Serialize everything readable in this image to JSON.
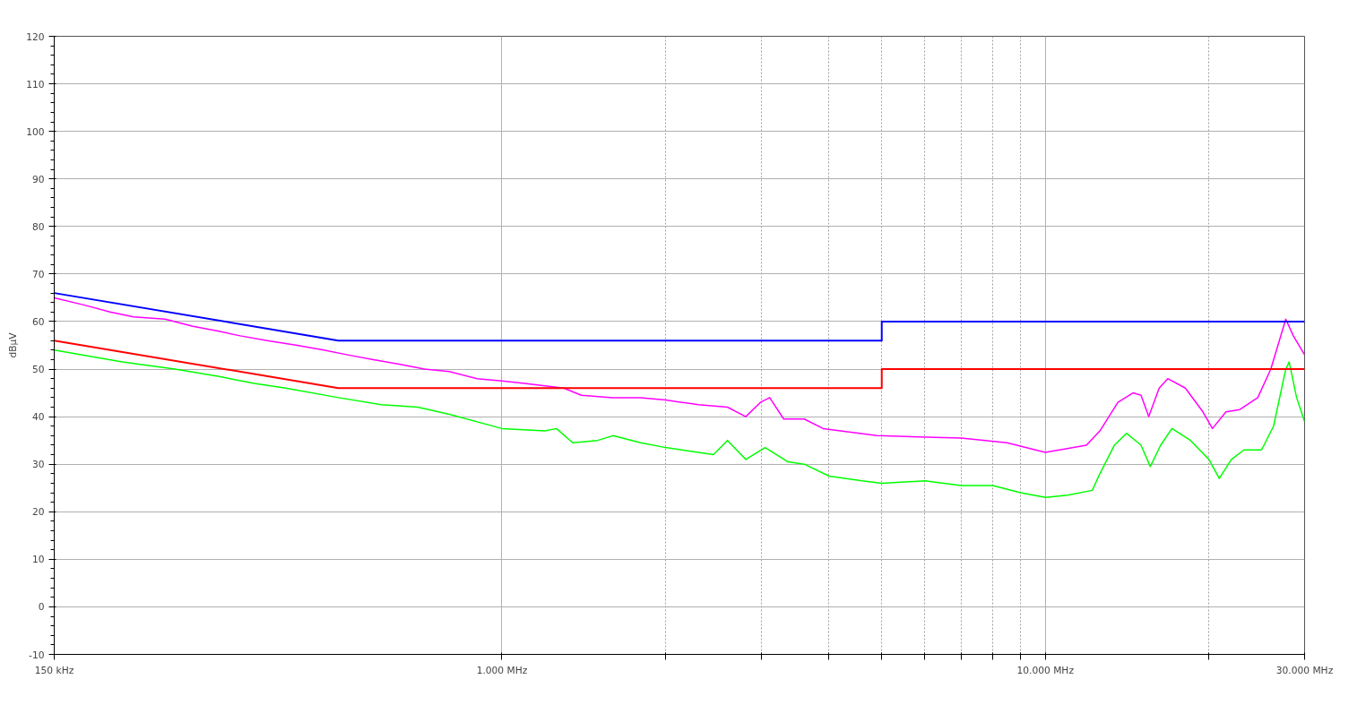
{
  "chart_data": {
    "type": "line",
    "ylabel": "dBµV",
    "log": "x",
    "grid": true,
    "marker": "none",
    "line_style": "solid",
    "xlim": [
      150,
      30000
    ],
    "ylim": [
      -10,
      120
    ],
    "xticks": [
      {
        "value": 150,
        "label": "150 kHz"
      },
      {
        "value": 1000,
        "label": "1.000 MHz"
      },
      {
        "value": 2000,
        "label": null
      },
      {
        "value": 3000,
        "label": null
      },
      {
        "value": 4000,
        "label": null
      },
      {
        "value": 5000,
        "label": null
      },
      {
        "value": 6000,
        "label": null
      },
      {
        "value": 7000,
        "label": null
      },
      {
        "value": 8000,
        "label": null
      },
      {
        "value": 9000,
        "label": null
      },
      {
        "value": 10000,
        "label": "10.000 MHz"
      },
      {
        "value": 20000,
        "label": null
      },
      {
        "value": 30000,
        "label": "30.000 MHz"
      }
    ],
    "yticks": [
      -10,
      0,
      10,
      20,
      30,
      40,
      50,
      60,
      70,
      80,
      90,
      100,
      110,
      120
    ],
    "series": [
      {
        "color": "#ff00ff",
        "x": [
          150,
          170,
          190,
          210,
          240,
          270,
          300,
          330,
          370,
          420,
          470,
          520,
          580,
          650,
          720,
          800,
          900,
          1000,
          1100,
          1300,
          1400,
          1600,
          1800,
          2000,
          2300,
          2600,
          2810,
          2990,
          3110,
          3300,
          3600,
          3900,
          4900,
          7000,
          8500,
          10000,
          11900,
          12600,
          13600,
          14500,
          15000,
          15500,
          16200,
          16800,
          18100,
          19500,
          20300,
          21500,
          22800,
          24600,
          26000,
          27700,
          28600,
          30000
        ],
        "values": [
          65,
          63.5,
          62,
          61,
          60.5,
          59,
          58,
          57,
          56,
          55,
          54,
          53,
          52,
          51,
          50,
          49.5,
          48,
          47.5,
          47,
          46,
          44.5,
          44,
          44,
          43.5,
          42.5,
          42,
          40,
          43,
          44,
          39.5,
          39.5,
          37.5,
          36,
          35.5,
          34.5,
          32.5,
          34,
          37,
          43,
          45,
          44.5,
          40,
          46,
          48,
          46,
          41,
          37.5,
          41,
          41.5,
          44,
          50,
          60.5,
          57,
          53
        ]
      },
      {
        "color": "#00ff00",
        "x": [
          150,
          200,
          250,
          300,
          350,
          400,
          500,
          600,
          700,
          800,
          1000,
          1200,
          1260,
          1350,
          1500,
          1600,
          1800,
          2000,
          2300,
          2450,
          2600,
          2810,
          3050,
          3360,
          3600,
          4000,
          4600,
          5000,
          6000,
          7000,
          8000,
          9000,
          10000,
          11000,
          12200,
          12600,
          13400,
          14100,
          15000,
          15600,
          16300,
          17100,
          18500,
          20000,
          20900,
          22000,
          23200,
          25000,
          26300,
          27700,
          28100,
          29000,
          30000
        ],
        "values": [
          54,
          51.5,
          50,
          48.5,
          47,
          46,
          44,
          42.5,
          42,
          40.5,
          37.5,
          37,
          37.5,
          34.5,
          35,
          36,
          34.5,
          33.5,
          32.5,
          32,
          35,
          31,
          33.5,
          30.5,
          30,
          27.5,
          26.5,
          26,
          26.5,
          25.5,
          25.5,
          24,
          23,
          23.5,
          24.5,
          28,
          34,
          36.5,
          34,
          29.5,
          34,
          37.5,
          35,
          31,
          27,
          31,
          33,
          33,
          38,
          50,
          51.5,
          44,
          39
        ]
      },
      {
        "color": "#0000ff",
        "x": [
          150,
          500,
          5000,
          5000,
          30000
        ],
        "values": [
          66,
          56,
          56,
          60,
          60
        ]
      },
      {
        "color": "#ff0000",
        "x": [
          150,
          500,
          5000,
          5000,
          30000
        ],
        "values": [
          56,
          46,
          46,
          50,
          50
        ]
      }
    ]
  }
}
